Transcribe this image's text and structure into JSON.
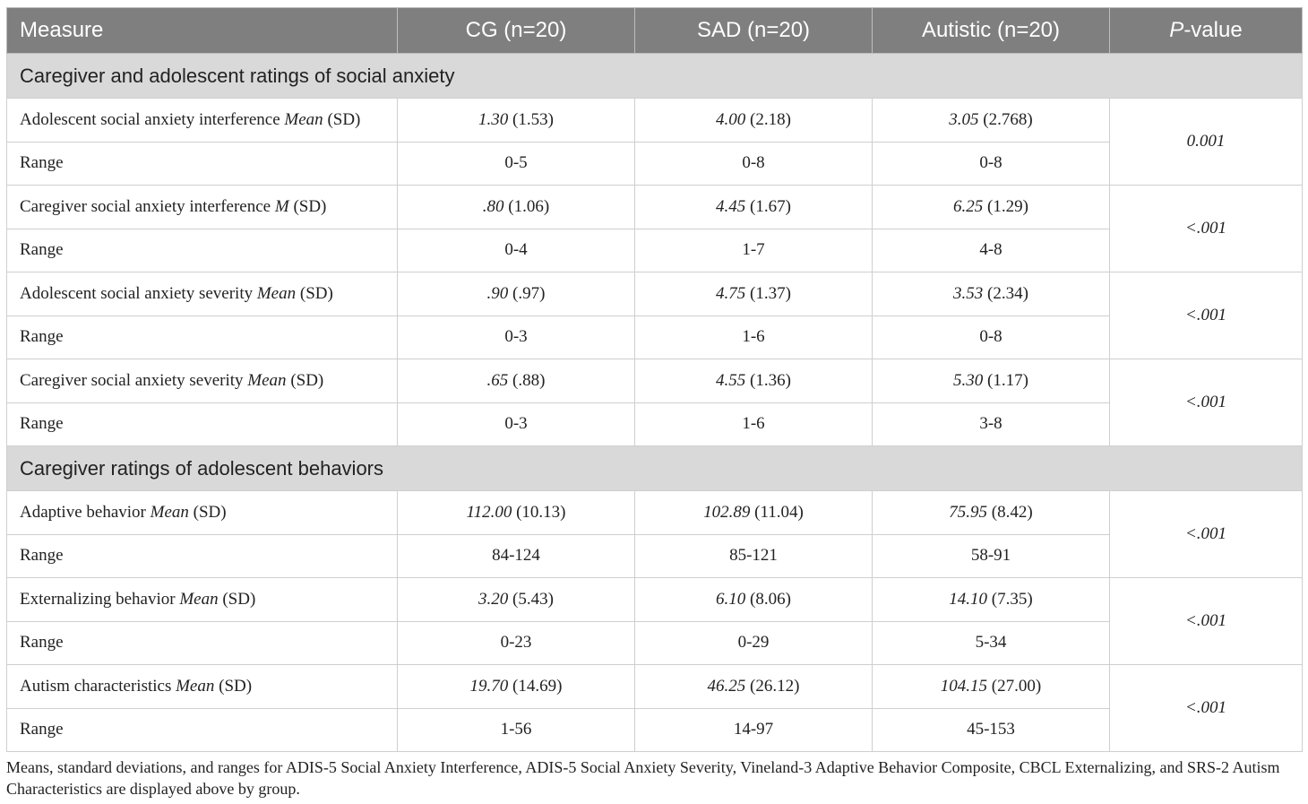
{
  "headers": [
    "Measure",
    "CG (n=20)",
    "SAD (n=20)",
    "Autistic (n=20)",
    "P",
    "-value"
  ],
  "sections": [
    {
      "title": "Caregiver and adolescent ratings of social anxiety",
      "measures": [
        {
          "label": "Adolescent social anxiety interference ",
          "stat": "Mean",
          "sd": " (SD)",
          "cg_mean": "1.30",
          "cg_sd": " (1.53)",
          "sad_mean": "4.00",
          "sad_sd": " (2.18)",
          "aut_mean": "3.05",
          "aut_sd": " (2.768)",
          "range_label": "Range",
          "cg_range": "0-5",
          "sad_range": "0-8",
          "aut_range": "0-8",
          "p": "0.001"
        },
        {
          "label": "Caregiver social anxiety interference ",
          "stat": "M",
          "sd": " (SD)",
          "cg_mean": ".80",
          "cg_sd": " (1.06)",
          "sad_mean": "4.45",
          "sad_sd": " (1.67)",
          "aut_mean": "6.25",
          "aut_sd": " (1.29)",
          "range_label": "Range",
          "cg_range": "0-4",
          "sad_range": "1-7",
          "aut_range": "4-8",
          "p": "<.001"
        },
        {
          "label": "Adolescent social anxiety severity ",
          "stat": "Mean",
          "sd": " (SD)",
          "cg_mean": ".90",
          "cg_sd": " (.97)",
          "sad_mean": "4.75",
          "sad_sd": " (1.37)",
          "aut_mean": "3.53",
          "aut_sd": " (2.34)",
          "range_label": "Range",
          "cg_range": "0-3",
          "sad_range": "1-6",
          "aut_range": "0-8",
          "p": "<.001"
        },
        {
          "label": "Caregiver social anxiety severity ",
          "stat": "Mean",
          "sd": " (SD)",
          "cg_mean": ".65",
          "cg_sd": " (.88)",
          "sad_mean": "4.55",
          "sad_sd": " (1.36)",
          "aut_mean": "5.30",
          "aut_sd": " (1.17)",
          "range_label": "Range",
          "cg_range": "0-3",
          "sad_range": "1-6",
          "aut_range": "3-8",
          "p": "<.001"
        }
      ]
    },
    {
      "title": "Caregiver ratings of adolescent behaviors",
      "measures": [
        {
          "label": "Adaptive behavior ",
          "stat": "Mean",
          "sd": " (SD)",
          "cg_mean": "112.00",
          "cg_sd": " (10.13)",
          "sad_mean": "102.89",
          "sad_sd": " (11.04)",
          "aut_mean": "75.95",
          "aut_sd": " (8.42)",
          "range_label": "Range",
          "cg_range": "84-124",
          "sad_range": "85-121",
          "aut_range": "58-91",
          "p": "<.001"
        },
        {
          "label": "Externalizing behavior ",
          "stat": "Mean",
          "sd": " (SD)",
          "cg_mean": "3.20",
          "cg_sd": " (5.43)",
          "sad_mean": "6.10",
          "sad_sd": " (8.06)",
          "aut_mean": "14.10",
          "aut_sd": " (7.35)",
          "range_label": "Range",
          "cg_range": "0-23",
          "sad_range": "0-29",
          "aut_range": "5-34",
          "p": "<.001"
        },
        {
          "label": "Autism characteristics ",
          "stat": "Mean",
          "sd": " (SD)",
          "cg_mean": "19.70",
          "cg_sd": " (14.69)",
          "sad_mean": "46.25",
          "sad_sd": " (26.12)",
          "aut_mean": "104.15",
          "aut_sd": " (27.00)",
          "range_label": "Range",
          "cg_range": "1-56",
          "sad_range": "14-97",
          "aut_range": "45-153",
          "p": "<.001"
        }
      ]
    }
  ],
  "note": "Means, standard deviations, and ranges for ADIS-5 Social Anxiety Interference, ADIS-5 Social Anxiety Severity, Vineland-3 Adaptive Behavior Composite, CBCL Externalizing, and SRS-2 Autism Characteristics are displayed above by group."
}
